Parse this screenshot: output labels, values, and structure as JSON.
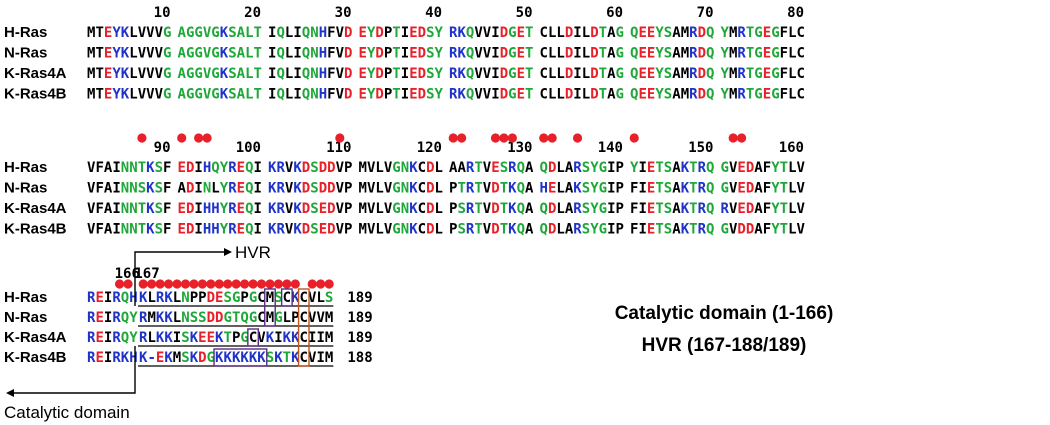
{
  "proteins": [
    "H-Ras",
    "N-Ras",
    "K-Ras4A",
    "K-Ras4B"
  ],
  "colors": {
    "red": "#e8202a",
    "green": "#1fa83a",
    "blue": "#1f33c9",
    "black": "#000000",
    "dot": "#e8202a",
    "box_purple": "#5b2c82",
    "box_orange": "#c0551e"
  },
  "blocks": [
    {
      "numbers": [
        "10",
        "20",
        "30",
        "40",
        "50",
        "60",
        "70",
        "80"
      ],
      "groups": [
        {
          "seqs": [
            "MTEYKLVVVG",
            "MTEYKLVVVG",
            "MTEYKLVVVG",
            "MTEYKLVVVG"
          ],
          "codes": [
            "KKRBBKKKKG",
            "KKRBBKKKKG",
            "KKRBBKKKKG",
            "KKRBBKKKKG"
          ]
        },
        {
          "seqs": [
            "AGGVGKSALT",
            "AGGVGKSALT",
            "AGGVGKSALT",
            "AGGVGKSALT"
          ],
          "codes": [
            "GGGGGBGGGG",
            "GGGGGBGGGG",
            "GGGGGBGGGG",
            "GGGGGBGGGG"
          ]
        },
        {
          "seqs": [
            "IQLIQNHFVD",
            "IQLIQNHFVD",
            "IQLIQNHFVD",
            "IQLIQNHFVD"
          ],
          "codes": [
            "KGKKGGBKKR",
            "KGKKGGBKKR",
            "KGKKGGBKKR",
            "KGKKGGBKKR"
          ]
        },
        {
          "seqs": [
            "EYDPTIEDSY",
            "EYDPTIEDSY",
            "EYDPTIEDSY",
            "EYDPTIEDSY"
          ],
          "codes": [
            "RGRKGKRRGG",
            "RGRKGKRRGG",
            "RGRKGKRRGG",
            "RGRKGKRRGG"
          ]
        },
        {
          "seqs": [
            "RKQVVIDGET",
            "RKQVVIDGET",
            "RKQVVIDGET",
            "RKQVVIDGET"
          ],
          "codes": [
            "BBGKKKRGRG",
            "BBGKKKRGRG",
            "BBGKKKRGRG",
            "BBGKKKRGRG"
          ]
        },
        {
          "seqs": [
            "CLLDILDTAG",
            "CLLDILDTAG",
            "CLLDILDTAG",
            "CLLDILDTAG"
          ],
          "codes": [
            "KKKRKKRGKG",
            "KKKRKKRGKG",
            "KKKRKKRGKG",
            "KKKRKKRGKG"
          ]
        },
        {
          "seqs": [
            "QEEYSAMRDQ",
            "QEEYSAMRDQ",
            "QEEYSAMRDQ",
            "QEEYSAMRDQ"
          ],
          "codes": [
            "GRRGGKKBRG",
            "GRRGGKKBRG",
            "GRRGGKKBRG",
            "GRRGGKKBRG"
          ]
        },
        {
          "seqs": [
            "YMRTGEGFLC",
            "YMRTGEGFLC",
            "YMRTGEGFLC",
            "YMRTGEGFLC"
          ],
          "codes": [
            "GKBGGRGKKK",
            "GKBGGRGKKK",
            "GKBGGRGKKK",
            "GKBGGRGKKK"
          ]
        }
      ],
      "dots": []
    },
    {
      "numbers": [
        "90",
        "100",
        "110",
        "120",
        "130",
        "140",
        "150",
        "160"
      ],
      "groups": [
        {
          "seqs": [
            "VFAINNTKSF",
            "VFAINNSKSF",
            "VFAINNTKSF",
            "VFAINNTKSF"
          ],
          "codes": [
            "KKKKGGGBGK",
            "KKKKGGGBGK",
            "KKKKGGGBGK",
            "KKKKGGGBGK"
          ]
        },
        {
          "seqs": [
            "EDIHQYREQI",
            "ADINLYREQI",
            "EDIHHYREQI",
            "EDIHHYREQI"
          ],
          "codes": [
            "RRKBGGBRGK",
            "KRKGKGBRGK",
            "RRKBBGBRGK",
            "RRKBBGBRGK"
          ]
        },
        {
          "seqs": [
            "KRVKDSDDVP",
            "KRVKDSDDVP",
            "KRVKDSEDVP",
            "KRVKDSEDVP"
          ],
          "codes": [
            "BBKBRGRRKK",
            "BBKBRGRRKK",
            "BBKBRGRRKK",
            "BBKBRGRRKK"
          ]
        },
        {
          "seqs": [
            "MVLVGNKCDL",
            "MVLVGNKCDL",
            "MVLVGNKCDL",
            "MVLVGNKCDL"
          ],
          "codes": [
            "KKKKGGBKRK",
            "KKKKGGBKRK",
            "KKKKGGBKRK",
            "KKKKGGBKRK"
          ]
        },
        {
          "seqs": [
            "AARTVESRQA",
            "PTRTVDTKQA",
            "PSRTVDTKQA",
            "PSRTVDTKQA"
          ],
          "codes": [
            "KKBGKRGBGK",
            "KGBGKRGBGK",
            "KGBGKRGBGK",
            "KGBGKRGBGK"
          ]
        },
        {
          "seqs": [
            "QDLARSYGIP",
            "HELAKSYGIP",
            "QDLARSYGIP",
            "QDLARSYGIP"
          ],
          "codes": [
            "GRKKBGGGKK",
            "BRKKBGGGKK",
            "GRKKBGGGKK",
            "GRKKBGGGKK"
          ]
        },
        {
          "seqs": [
            "YIETSAKTRQ",
            "FIETSAKTRQ",
            "FIETSAKTRQ",
            "FIETSAKTRQ"
          ],
          "codes": [
            "GKRGGKBGBG",
            "KKRGGKBGBG",
            "KKRGGKBGBG",
            "KKRGGKBGBG"
          ]
        },
        {
          "seqs": [
            "GVEDAFYTLV",
            "GVEDAFYTLV",
            "RVEDAFYTLV",
            "GVDDAFYTLV"
          ],
          "codes": [
            "GKRRKKGGKK",
            "GKRRKKGGKK",
            "BKRRKKGGKK",
            "GKRRKKGGKK"
          ]
        }
      ],
      "dots": [
        [
          0,
          6
        ],
        [
          1,
          0
        ],
        [
          1,
          2
        ],
        [
          1,
          3
        ],
        [
          2,
          8
        ],
        [
          4,
          0
        ],
        [
          4,
          1
        ],
        [
          4,
          5
        ],
        [
          4,
          6
        ],
        [
          4,
          7
        ],
        [
          5,
          0
        ],
        [
          5,
          1
        ],
        [
          5,
          4
        ],
        [
          6,
          0
        ],
        [
          7,
          1
        ],
        [
          7,
          2
        ]
      ]
    }
  ],
  "hvr_block": {
    "numbers": [
      "166",
      "167"
    ],
    "prefix": {
      "seqs": [
        "REIRQH",
        "REIRQY",
        "REIRQY",
        "REIRKH"
      ],
      "codes": [
        "BRKBGB",
        "BRKBGG",
        "BRKBGG",
        "BRKBBB"
      ]
    },
    "tail": {
      "seqs": [
        "KLRKLNPPDESGPGCMSCKCVLS",
        "RMKKLNSSDDGTQGCMGLPCVVM",
        "RLKKISKEEKTPGCVKIKKCIIM",
        "K-EKMSKDGKKKKKKSKTKCVIM"
      ],
      "codes": [
        "BKBBKGKKRRGGKGKKGKBKKKG",
        "BKBBKGGGRRGGGGKKGKKKKKK",
        "BKBBKGBRRBGKGKKBKBBKKKK",
        "BBRBKGBRGBBBBBBGBGBKKKK"
      ]
    },
    "ends": [
      "189",
      "189",
      "189",
      "188"
    ],
    "dots": [
      0,
      1,
      2,
      3,
      4,
      5,
      6,
      7,
      8,
      9,
      10,
      11,
      12,
      13,
      14,
      15,
      16,
      17,
      18,
      20,
      21,
      22
    ],
    "prefix_dots": [
      3,
      4
    ],
    "hvr_label": "HVR",
    "catalytic_label": "Catalytic domain"
  },
  "legend": {
    "line1": "Catalytic domain (1-166)",
    "line2": "HVR (167-188/189)"
  }
}
